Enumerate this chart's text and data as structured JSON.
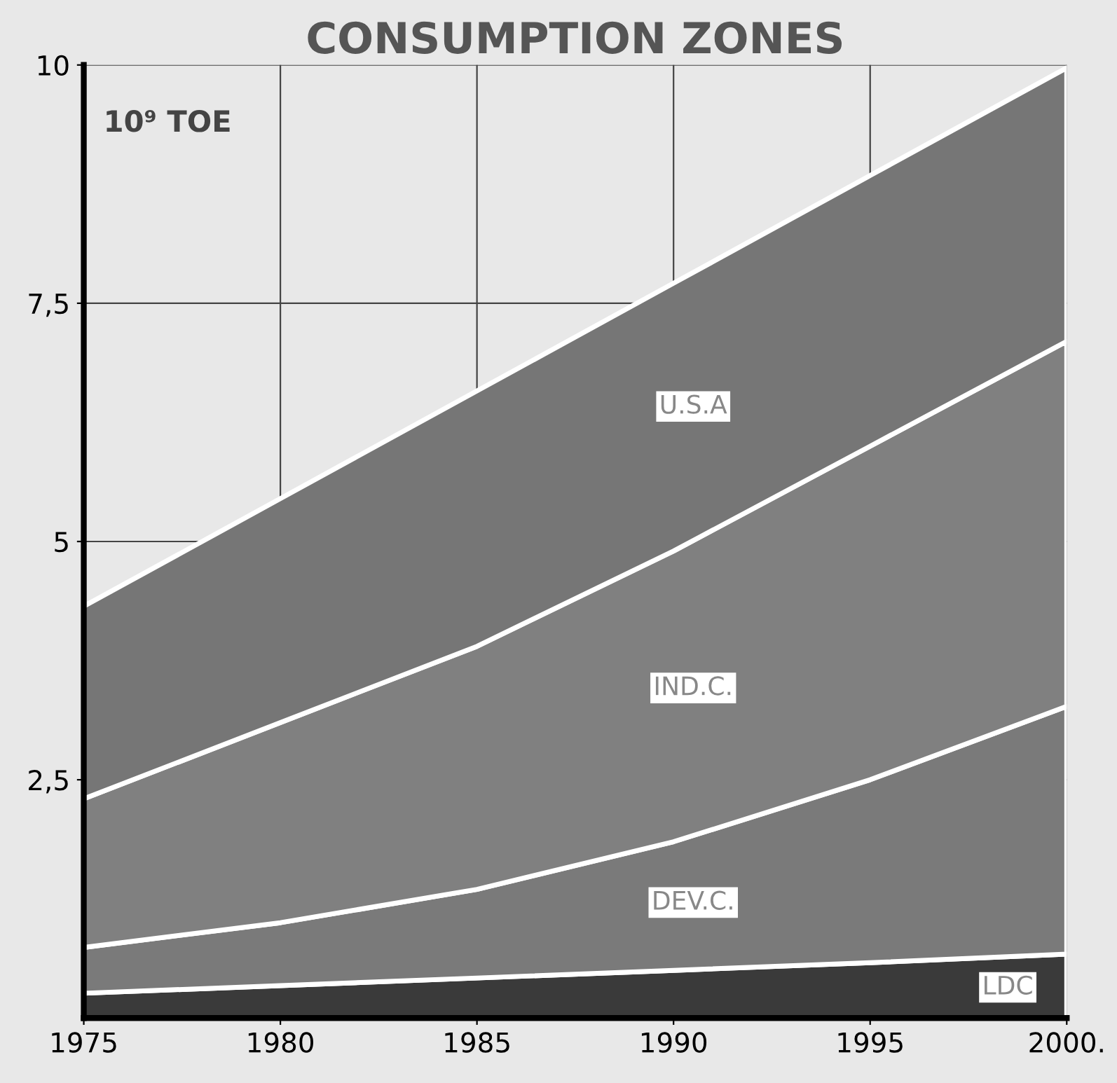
{
  "chart_data": {
    "type": "area",
    "title": "CONSUMPTION ZONES",
    "ylabel": "10⁹ TOE",
    "stacked": true,
    "x": [
      1975,
      1980,
      1985,
      1990,
      1995,
      2000
    ],
    "series": [
      {
        "name": "LDC",
        "color": "#3a3a3a",
        "values": [
          0.26,
          0.34,
          0.42,
          0.5,
          0.58,
          0.67
        ]
      },
      {
        "name": "DEV.C.",
        "color": "#7a7a7a",
        "values": [
          0.48,
          0.66,
          0.93,
          1.35,
          1.92,
          2.6
        ]
      },
      {
        "name": "IND.C.",
        "color": "#808080",
        "values": [
          1.56,
          2.1,
          2.55,
          3.05,
          3.5,
          3.83
        ]
      },
      {
        "name": "U.S.A",
        "color": "#767676",
        "values": [
          2.02,
          2.35,
          2.68,
          2.81,
          2.84,
          2.87
        ]
      }
    ],
    "xlim": [
      1975,
      2000
    ],
    "ylim": [
      0,
      10
    ],
    "xticks": [
      1975,
      1980,
      1985,
      1990,
      1995,
      {
        "value": 2000,
        "label": "2000."
      }
    ],
    "yticks": [
      {
        "value": 2.5,
        "label": "2,5"
      },
      5,
      {
        "value": 7.5,
        "label": "7,5"
      },
      10
    ],
    "grid": true,
    "legend": false
  }
}
